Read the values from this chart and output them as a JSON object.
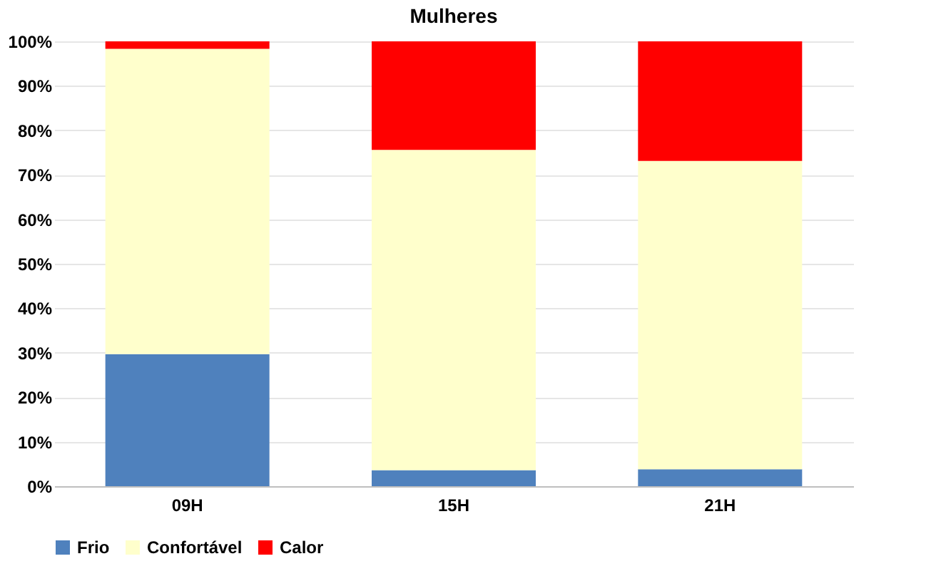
{
  "chart_data": {
    "type": "bar",
    "title": "Mulheres",
    "stacked": true,
    "categories": [
      "09H",
      "15H",
      "21H"
    ],
    "series": [
      {
        "name": "Frio",
        "color": "#4f81bd",
        "values": [
          29.7,
          3.6,
          3.8
        ]
      },
      {
        "name": "Confortável",
        "color": "#ffffcc",
        "values": [
          68.6,
          72.0,
          69.3
        ]
      },
      {
        "name": "Calor",
        "color": "#ff0000",
        "values": [
          1.7,
          24.4,
          26.9
        ]
      }
    ],
    "ylim": [
      0,
      100
    ],
    "yticks": [
      {
        "value": 0,
        "label": "0%"
      },
      {
        "value": 10,
        "label": "10%"
      },
      {
        "value": 20,
        "label": "20%"
      },
      {
        "value": 30,
        "label": "30%"
      },
      {
        "value": 40,
        "label": "40%"
      },
      {
        "value": 50,
        "label": "50%"
      },
      {
        "value": 60,
        "label": "60%"
      },
      {
        "value": 70,
        "label": "70%"
      },
      {
        "value": 80,
        "label": "80%"
      },
      {
        "value": 90,
        "label": "90%"
      },
      {
        "value": 100,
        "label": "100%"
      }
    ],
    "grid": "y",
    "legend": "bottom"
  }
}
